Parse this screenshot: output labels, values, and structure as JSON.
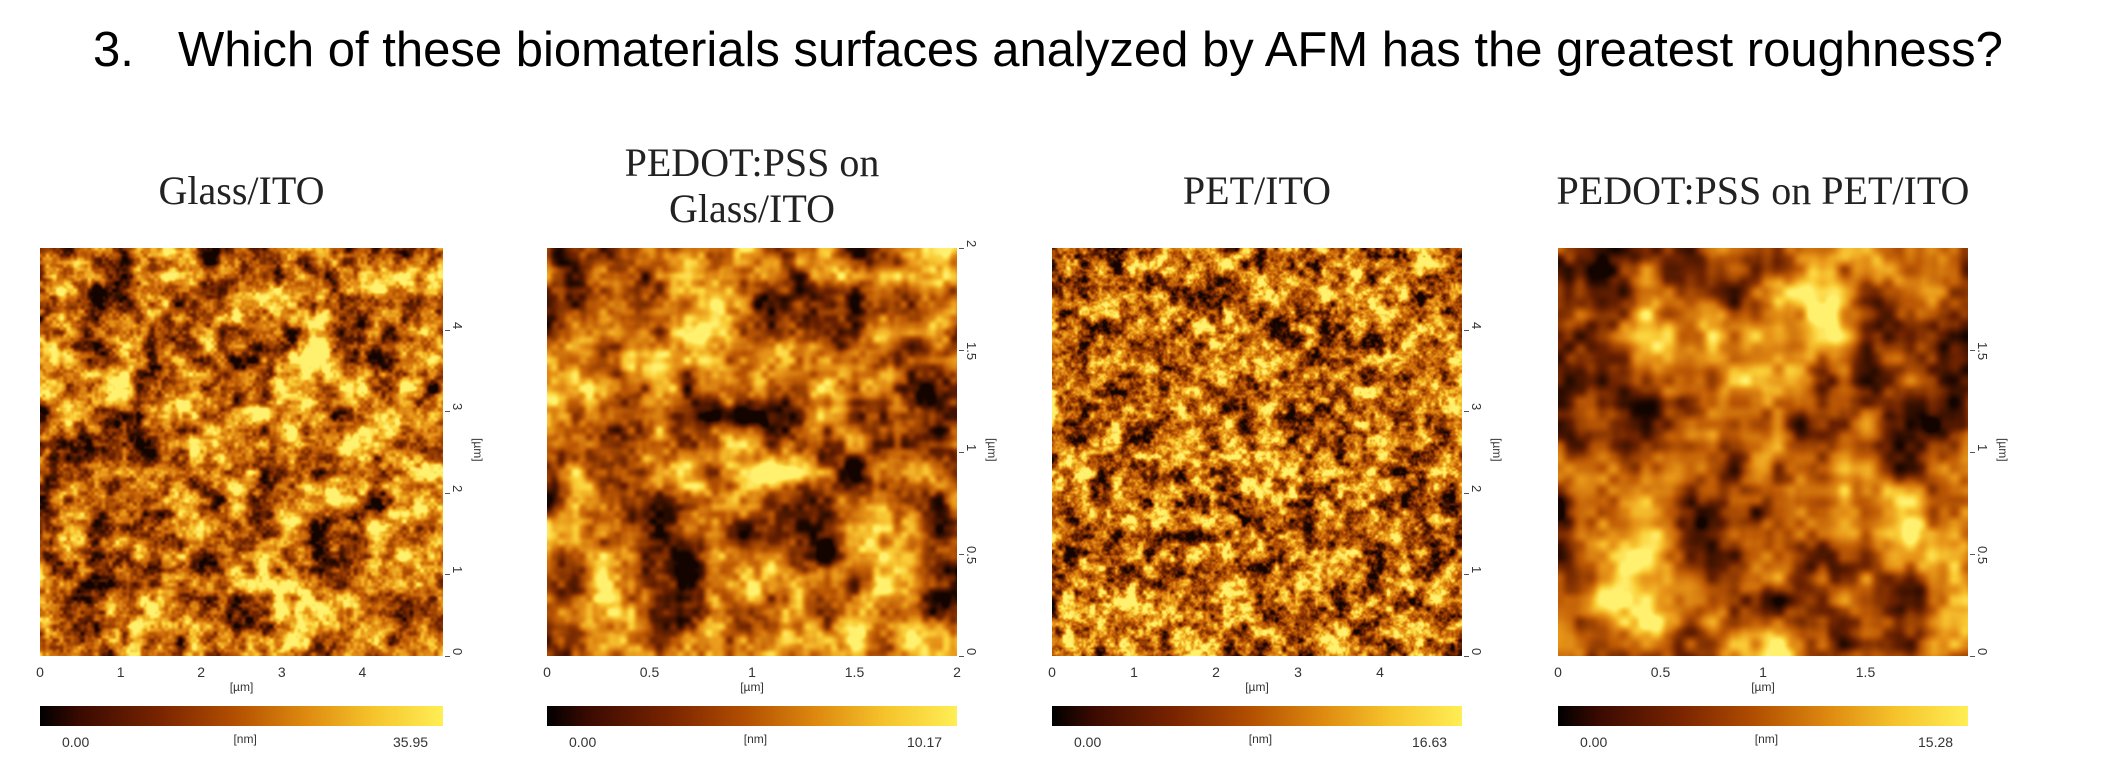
{
  "question": {
    "number": "3.",
    "text": "Which of these biomaterials surfaces analyzed by AFM has the greatest roughness?"
  },
  "panels": [
    {
      "title": "Glass/ITO",
      "xticks": [
        "0",
        "1",
        "2",
        "3",
        "4"
      ],
      "yticks": [
        "0",
        "1",
        "2",
        "3",
        "4"
      ],
      "axis_unit": "[µm]",
      "colorbar": {
        "min": "0.00",
        "unit": "[nm]",
        "max": "35.95"
      }
    },
    {
      "title": "PEDOT:PSS on Glass/ITO",
      "xticks": [
        "0",
        "0.5",
        "1",
        "1.5",
        "2"
      ],
      "yticks": [
        "0",
        "0.5",
        "1",
        "1.5",
        "2"
      ],
      "axis_unit": "[µm]",
      "colorbar": {
        "min": "0.00",
        "unit": "[nm]",
        "max": "10.17"
      }
    },
    {
      "title": "PET/ITO",
      "xticks": [
        "0",
        "1",
        "2",
        "3",
        "4"
      ],
      "yticks": [
        "0",
        "1",
        "2",
        "3",
        "4"
      ],
      "axis_unit": "[µm]",
      "colorbar": {
        "min": "0.00",
        "unit": "[nm]",
        "max": "16.63"
      }
    },
    {
      "title": "PEDOT:PSS on PET/ITO",
      "xticks": [
        "0",
        "0.5",
        "1",
        "1.5"
      ],
      "yticks": [
        "0",
        "0.5",
        "1",
        "1.5"
      ],
      "axis_unit": "[µm]",
      "colorbar": {
        "min": "0.00",
        "unit": "[nm]",
        "max": "15.28"
      }
    }
  ],
  "colors": {
    "afm_dark": "#2a0800",
    "afm_mid": "#c25a00",
    "afm_bright": "#ffe040"
  }
}
